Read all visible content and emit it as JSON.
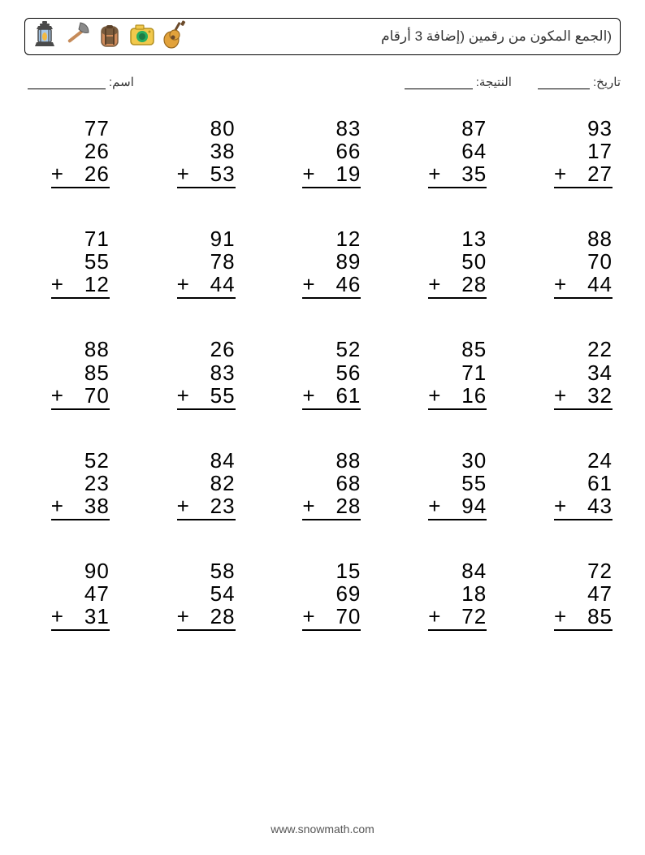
{
  "header": {
    "title": "(الجمع المكون من رقمين (إضافة 3 أرقام",
    "icons": [
      "lantern-icon",
      "axe-icon",
      "backpack-icon",
      "camera-icon",
      "guitar-icon"
    ]
  },
  "meta": {
    "date_label": "تاريخ:",
    "score_label": "النتيجة:",
    "name_label": "اسم:"
  },
  "style": {
    "columns": 5,
    "rows": 5,
    "font_size_problem": 26,
    "font_size_title": 17,
    "font_size_meta": 15,
    "font_size_footer": 14,
    "text_color": "#000000",
    "title_color": "#333333",
    "background_color": "#ffffff",
    "border_color": "#000000",
    "blank_width_name": 96,
    "blank_width_score": 84,
    "blank_width_date": 64,
    "icon_colors": {
      "lantern": {
        "body": "#a7c7e7",
        "flame": "#f4b942",
        "frame": "#4a4a4a"
      },
      "axe": {
        "handle": "#c68b59",
        "head": "#8a8a8a"
      },
      "backpack": {
        "body": "#d08b5b",
        "flap": "#7a5c3e",
        "strap": "#5a4028"
      },
      "camera": {
        "body": "#f2c94c",
        "lens": "#27ae60",
        "lens_inner": "#1e7a45"
      },
      "guitar": {
        "body": "#e2a23b",
        "neck": "#6b4a2b"
      }
    }
  },
  "problems": [
    [
      77,
      26,
      26
    ],
    [
      80,
      38,
      53
    ],
    [
      83,
      66,
      19
    ],
    [
      87,
      64,
      35
    ],
    [
      93,
      17,
      27
    ],
    [
      71,
      55,
      12
    ],
    [
      91,
      78,
      44
    ],
    [
      12,
      89,
      46
    ],
    [
      13,
      50,
      28
    ],
    [
      88,
      70,
      44
    ],
    [
      88,
      85,
      70
    ],
    [
      26,
      83,
      55
    ],
    [
      52,
      56,
      61
    ],
    [
      85,
      71,
      16
    ],
    [
      22,
      34,
      32
    ],
    [
      52,
      23,
      38
    ],
    [
      84,
      82,
      23
    ],
    [
      88,
      68,
      28
    ],
    [
      30,
      55,
      94
    ],
    [
      24,
      61,
      43
    ],
    [
      90,
      47,
      31
    ],
    [
      58,
      54,
      28
    ],
    [
      15,
      69,
      70
    ],
    [
      84,
      18,
      72
    ],
    [
      72,
      47,
      85
    ]
  ],
  "footer": {
    "text": "www.snowmath.com"
  }
}
